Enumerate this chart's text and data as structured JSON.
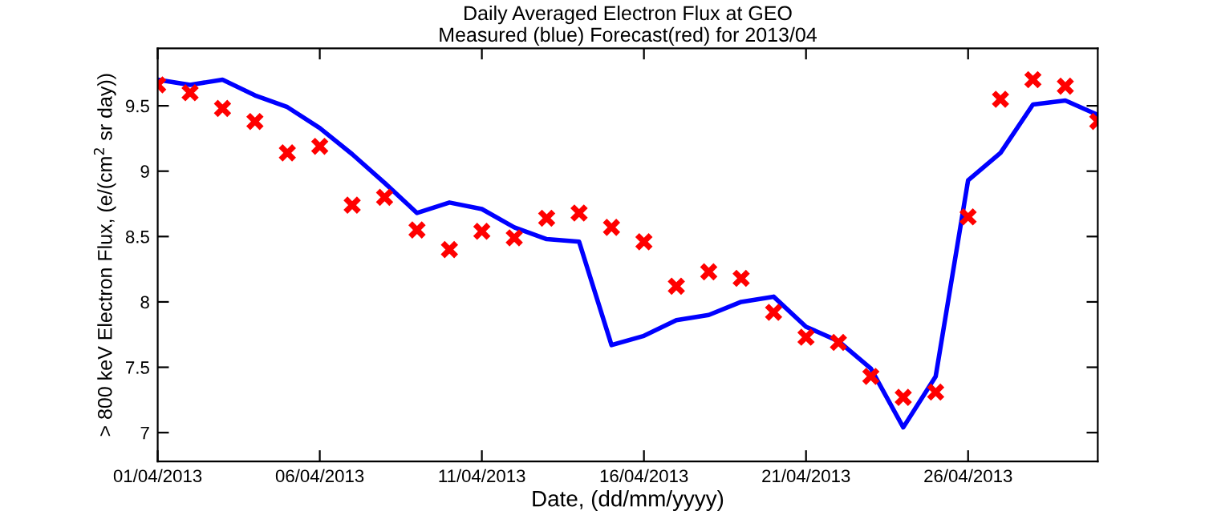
{
  "chart_data": {
    "type": "line",
    "title": "Daily Averaged Electron Flux at GEO",
    "subtitle": "Measured (blue) Forecast(red) for 2013/04",
    "xlabel": "Date, (dd/mm/yyyy)",
    "ylabel": "> 800 keV Electron Flux, (e/(cm$^{2}$ sr day))",
    "x": [
      "2013-04-01",
      "2013-04-02",
      "2013-04-03",
      "2013-04-04",
      "2013-04-05",
      "2013-04-06",
      "2013-04-07",
      "2013-04-08",
      "2013-04-09",
      "2013-04-10",
      "2013-04-11",
      "2013-04-12",
      "2013-04-13",
      "2013-04-14",
      "2013-04-15",
      "2013-04-16",
      "2013-04-17",
      "2013-04-18",
      "2013-04-19",
      "2013-04-20",
      "2013-04-21",
      "2013-04-22",
      "2013-04-23",
      "2013-04-24",
      "2013-04-25",
      "2013-04-26",
      "2013-04-27",
      "2013-04-28",
      "2013-04-29",
      "2013-04-30"
    ],
    "series": [
      {
        "color": "#0000ff",
        "line_style": "solid",
        "marker": "none",
        "values": [
          9.7,
          9.66,
          9.7,
          9.58,
          9.49,
          9.33,
          9.13,
          8.91,
          8.68,
          8.76,
          8.71,
          8.57,
          8.48,
          8.46,
          7.67,
          7.74,
          7.86,
          7.9,
          8.0,
          8.04,
          7.81,
          7.7,
          7.49,
          7.04,
          7.43,
          8.93,
          9.14,
          9.51,
          9.54,
          9.43
        ]
      },
      {
        "type": "scatter",
        "color": "#ff0000",
        "marker": "cross",
        "values": [
          9.66,
          9.6,
          9.48,
          9.38,
          9.14,
          9.19,
          8.74,
          8.8,
          8.55,
          8.4,
          8.54,
          8.49,
          8.64,
          8.68,
          8.57,
          8.46,
          8.12,
          8.23,
          8.18,
          7.92,
          7.73,
          7.69,
          7.43,
          7.27,
          7.31,
          8.65,
          9.55,
          9.7,
          9.65,
          9.38
        ]
      }
    ],
    "xlim": [
      "2013-04-01",
      "2013-04-30"
    ],
    "xticks": [
      {
        "value": "2013-04-01",
        "label": "01/04/2013"
      },
      {
        "value": "2013-04-06",
        "label": "06/04/2013"
      },
      {
        "value": "2013-04-11",
        "label": "11/04/2013"
      },
      {
        "value": "2013-04-16",
        "label": "16/04/2013"
      },
      {
        "value": "2013-04-21",
        "label": "21/04/2013"
      },
      {
        "value": "2013-04-26",
        "label": "26/04/2013"
      }
    ],
    "ylim": [
      6.78,
      9.94
    ],
    "yticks": [
      7,
      7.5,
      8,
      8.5,
      9,
      9.5
    ],
    "grid": false
  }
}
